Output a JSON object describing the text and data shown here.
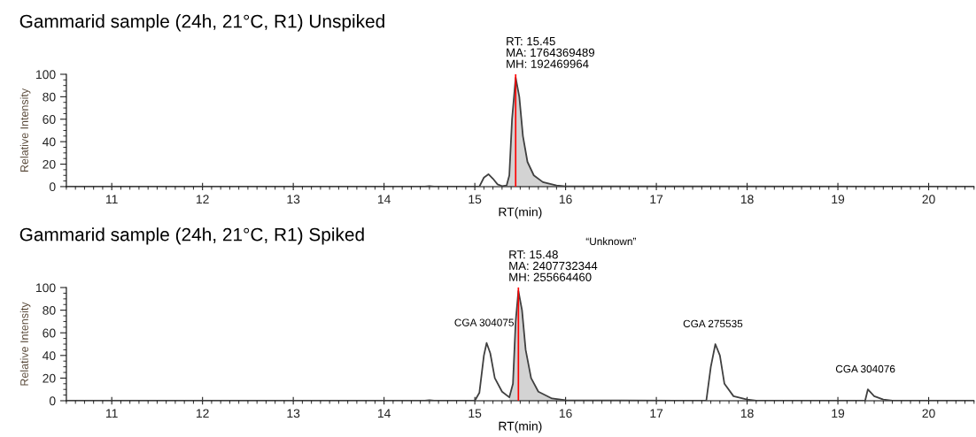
{
  "chart_data": [
    {
      "type": "line",
      "title": "Gammarid sample (24h, 21°C, R1) Unspiked",
      "xlabel": "RT(min)",
      "ylabel": "Relative Intensity",
      "xlim": [
        10.5,
        20.5
      ],
      "xticks": [
        11,
        12,
        13,
        14,
        15,
        16,
        17,
        18,
        19,
        20
      ],
      "ylim": [
        0,
        100
      ],
      "yticks": [
        0,
        20,
        40,
        60,
        80,
        100
      ],
      "grid": false,
      "legend": false,
      "series": [
        {
          "color": "#404040",
          "x": [
            10.5,
            14.45,
            14.5,
            14.55,
            15.05,
            15.1,
            15.15,
            15.2,
            15.25,
            15.3,
            15.35,
            15.38,
            15.41,
            15.45,
            15.49,
            15.53,
            15.58,
            15.65,
            15.75,
            15.9,
            16.0,
            20.5
          ],
          "values": [
            0,
            0,
            0.5,
            0,
            0,
            8,
            11,
            7,
            2,
            0.5,
            1,
            10,
            60,
            97,
            80,
            45,
            22,
            10,
            4,
            1,
            0.3,
            0
          ]
        },
        {
          "type": "area",
          "color": "#d3d3d3",
          "x": [
            15.35,
            15.38,
            15.41,
            15.45,
            15.49,
            15.53,
            15.58,
            15.65,
            15.75,
            15.9,
            16.0
          ],
          "values": [
            1,
            10,
            60,
            97,
            80,
            45,
            22,
            10,
            4,
            1,
            0.3
          ]
        }
      ],
      "ref_lines": [
        {
          "axis": "x",
          "value": 15.45,
          "color": "#ff0000"
        }
      ],
      "annotations": [
        {
          "text": "RT: 15.45\nMA: 1764369489\nMH: 192469964",
          "x": 15.45,
          "y": 97
        }
      ]
    },
    {
      "type": "line",
      "title": "Gammarid sample (24h, 21°C, R1) Spiked",
      "xlabel": "RT(min)",
      "ylabel": "Relative Intensity",
      "xlim": [
        10.5,
        20.5
      ],
      "xticks": [
        11,
        12,
        13,
        14,
        15,
        16,
        17,
        18,
        19,
        20
      ],
      "ylim": [
        0,
        100
      ],
      "yticks": [
        0,
        20,
        40,
        60,
        80,
        100
      ],
      "grid": false,
      "legend": false,
      "series": [
        {
          "color": "#404040",
          "x": [
            10.5,
            14.45,
            14.5,
            14.55,
            15.0,
            15.05,
            15.1,
            15.13,
            15.17,
            15.22,
            15.3,
            15.38,
            15.42,
            15.45,
            15.48,
            15.52,
            15.56,
            15.62,
            15.7,
            15.85,
            16.0,
            17.55,
            17.6,
            17.65,
            17.7,
            17.75,
            17.85,
            18.0,
            18.1,
            19.3,
            19.33,
            19.4,
            19.5,
            19.6,
            20.5
          ],
          "values": [
            0,
            0,
            0.5,
            0,
            0,
            7,
            40,
            51,
            42,
            20,
            8,
            3,
            15,
            70,
            97,
            80,
            45,
            20,
            8,
            2,
            0.5,
            0,
            30,
            50,
            40,
            15,
            4,
            1,
            0,
            0,
            10,
            4,
            1,
            0,
            0
          ]
        },
        {
          "type": "area",
          "color": "#d3d3d3",
          "x": [
            15.38,
            15.42,
            15.45,
            15.48,
            15.52,
            15.56,
            15.62,
            15.7,
            15.85,
            16.0
          ],
          "values": [
            3,
            15,
            70,
            97,
            80,
            45,
            20,
            8,
            2,
            0.5
          ]
        }
      ],
      "ref_lines": [
        {
          "axis": "x",
          "value": 15.48,
          "color": "#ff0000"
        }
      ],
      "annotations": [
        {
          "text": "RT: 15.48\nMA: 2407732344\nMH: 255664460",
          "x": 15.48,
          "y": 97
        },
        "“Unknown”",
        {
          "text": "CGA 304075",
          "x": 15.13,
          "y": 51
        },
        {
          "text": "CGA 275535",
          "x": 17.65,
          "y": 50
        },
        {
          "text": "CGA 304076",
          "x": 19.33,
          "y": 10
        }
      ]
    }
  ]
}
